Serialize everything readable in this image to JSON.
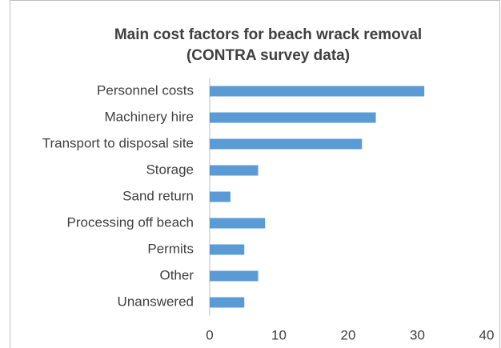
{
  "chart_data": {
    "type": "hbar",
    "title": "Main cost factors for beach wrack removal",
    "subtitle": "(CONTRA survey data)",
    "categories": [
      "Personnel costs",
      "Machinery hire",
      "Transport to disposal site",
      "Storage",
      "Sand return",
      "Processing off beach",
      "Permits",
      "Other",
      "Unanswered"
    ],
    "values": [
      31,
      24,
      22,
      7,
      3,
      8,
      5,
      7,
      5
    ],
    "color": "#5b9bd5",
    "xlim": [
      0,
      40
    ],
    "xticks": [
      0,
      10,
      20,
      30,
      40
    ],
    "grid": false
  }
}
